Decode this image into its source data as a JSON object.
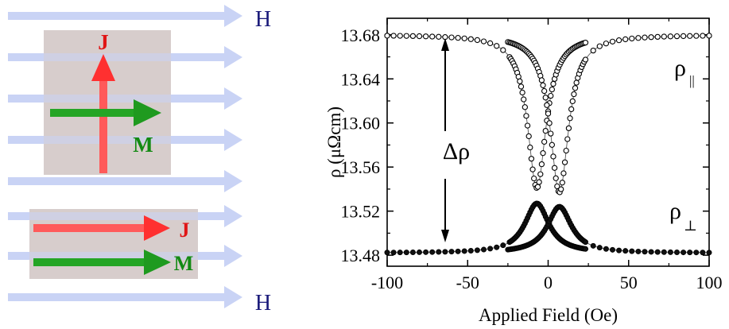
{
  "schematic": {
    "field_label": "H",
    "current_label": "J",
    "magnetization_label": "M",
    "field_arrow_color": "#c9d3f5",
    "box_color": "#d7cdcc",
    "current_color": "#ff4b4b",
    "magnetization_color": "#20a020",
    "label_color_field": "#1a1a7a",
    "label_color_current": "#e01515",
    "label_color_magnetization": "#138a13"
  },
  "chart_data": {
    "type": "scatter",
    "xlabel": "Applied Field (Oe)",
    "ylabel": "ρ (μΩcm)",
    "xlim": [
      -100,
      100
    ],
    "ylim": [
      13.47,
      13.695
    ],
    "x_ticks": [
      -100,
      -50,
      0,
      50,
      100
    ],
    "y_ticks": [
      13.48,
      13.52,
      13.56,
      13.6,
      13.64,
      13.68
    ],
    "x_tick_labels": [
      "-100",
      "-50",
      "0",
      "50",
      "100"
    ],
    "y_tick_labels": [
      "13.48",
      "13.52",
      "13.56",
      "13.60",
      "13.64",
      "13.68"
    ],
    "grid": false,
    "annotations": {
      "delta_rho": "Δρ",
      "rho_parallel": "ρ",
      "rho_parallel_sub": "||",
      "rho_perp": "ρ",
      "rho_perp_sub": "⊥"
    },
    "series": [
      {
        "marker": "open-circle",
        "branch": "sweep-down",
        "baseline": 13.68,
        "dip_min": 13.541,
        "dip_center": -7,
        "dip_width": 7,
        "x_range": [
          -100,
          25
        ],
        "dense_range": [
          -24,
          24
        ]
      },
      {
        "marker": "open-circle",
        "branch": "sweep-up",
        "baseline": 13.68,
        "dip_min": 13.537,
        "dip_center": 7,
        "dip_width": 7,
        "x_range": [
          -25,
          100
        ],
        "dense_range": [
          -24,
          24
        ]
      },
      {
        "marker": "filled-circle",
        "branch": "sweep-down",
        "baseline": 13.482,
        "peak_max": 13.527,
        "peak_center": -7,
        "peak_width": 9,
        "x_range": [
          -100,
          25
        ],
        "dense_range": [
          -24,
          24
        ]
      },
      {
        "marker": "filled-circle",
        "branch": "sweep-up",
        "baseline": 13.482,
        "peak_max": 13.524,
        "peak_center": 7,
        "peak_width": 9,
        "x_range": [
          -25,
          100
        ],
        "dense_range": [
          -24,
          24
        ]
      }
    ]
  }
}
